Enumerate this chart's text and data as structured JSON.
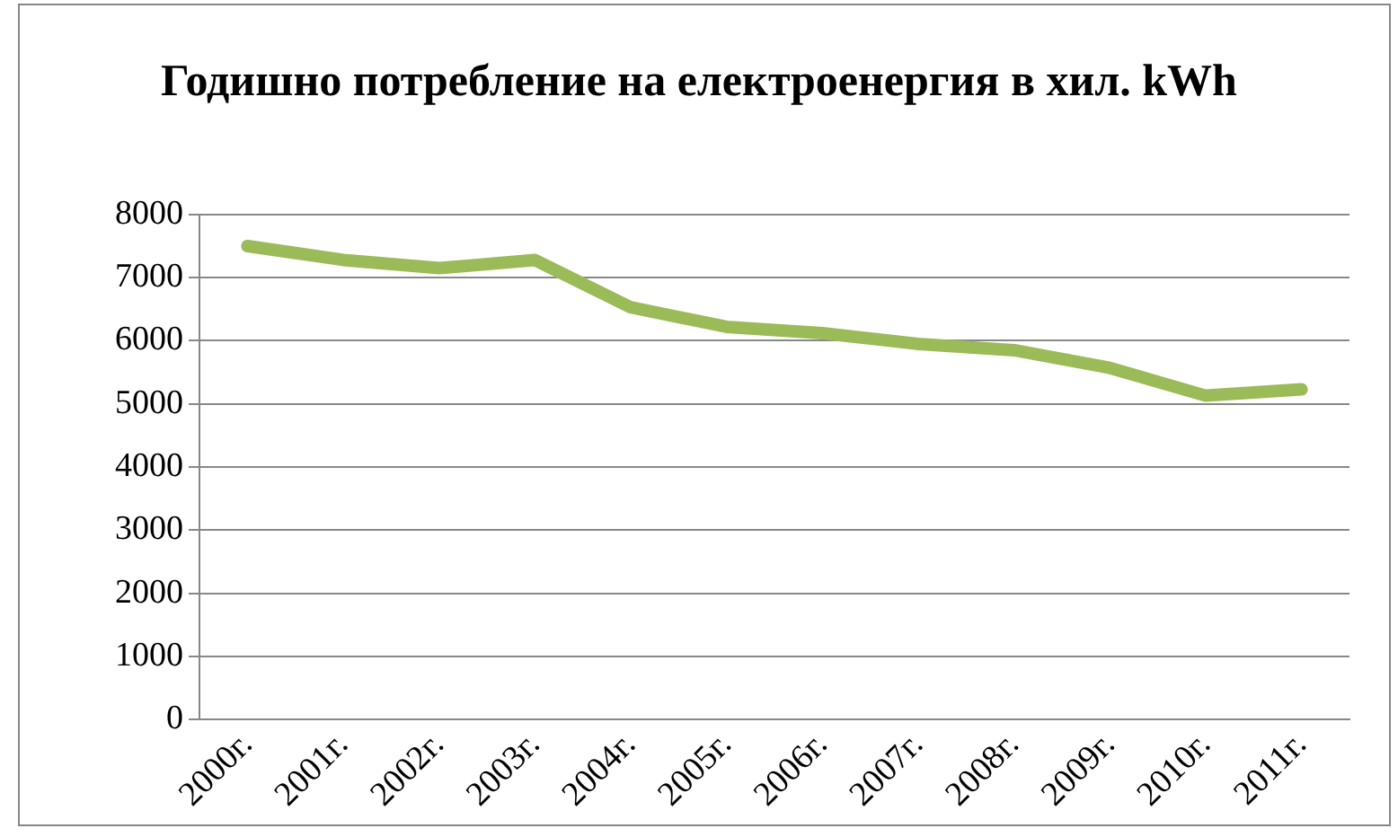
{
  "chart_data": {
    "type": "line",
    "title": "Годишно потребление на електроенергия в хил. kWh",
    "categories": [
      "2000г.",
      "2001г.",
      "2002г.",
      "2003г.",
      "2004г.",
      "2005г.",
      "2006г.",
      "2007г.",
      "2008г.",
      "2009г.",
      "2010г.",
      "2011г."
    ],
    "series": [
      {
        "color": "#9bbb59",
        "values": [
          7500,
          7280,
          7150,
          7280,
          6530,
          6220,
          6120,
          5950,
          5850,
          5570,
          5130,
          5230
        ]
      }
    ],
    "ylim": [
      0,
      8000
    ],
    "yticks": [
      0,
      1000,
      2000,
      3000,
      4000,
      5000,
      6000,
      7000,
      8000
    ],
    "grid": "y",
    "legend": false,
    "marker": "none",
    "line_style": "solid"
  }
}
